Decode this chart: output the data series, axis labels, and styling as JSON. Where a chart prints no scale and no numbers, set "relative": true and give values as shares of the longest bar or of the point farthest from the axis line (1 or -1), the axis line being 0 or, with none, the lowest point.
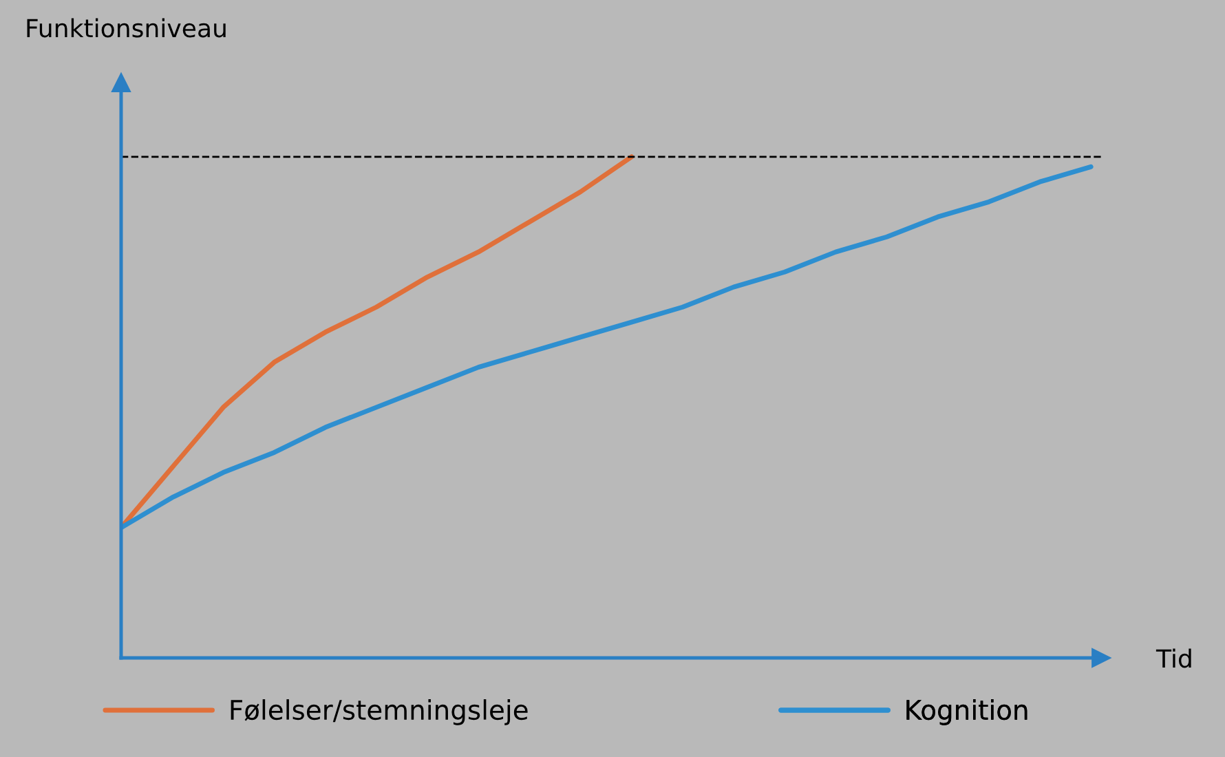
{
  "chart_data": {
    "type": "line",
    "relative": true,
    "xlabel": "Tid",
    "ylabel": "Funktionsniveau",
    "categories": [
      null,
      null,
      null,
      null,
      null,
      null,
      null,
      null,
      null,
      null,
      null,
      null,
      null,
      null,
      null,
      null,
      null,
      null,
      null,
      null
    ],
    "series": [
      {
        "name": "Følelser/stemningsleje",
        "color": "#e0703a",
        "values": [
          0.26,
          0.38,
          0.5,
          0.59,
          0.65,
          0.7,
          0.76,
          0.81,
          0.87,
          0.93,
          1.0,
          null,
          null,
          null,
          null,
          null,
          null,
          null,
          null,
          null
        ]
      },
      {
        "name": "Kognition",
        "color": "#2e8fd0",
        "values": [
          0.26,
          0.32,
          0.37,
          0.41,
          0.46,
          0.5,
          0.54,
          0.58,
          0.61,
          0.64,
          0.67,
          0.7,
          0.74,
          0.77,
          0.81,
          0.84,
          0.88,
          0.91,
          0.95,
          0.98
        ]
      }
    ],
    "ref_lines": [
      {
        "axis": "y",
        "value": 1.0,
        "color": "#000000",
        "line_style": "dashed"
      }
    ],
    "legend": "bottom",
    "grid": false,
    "marker": "none",
    "line_style": "solid"
  }
}
